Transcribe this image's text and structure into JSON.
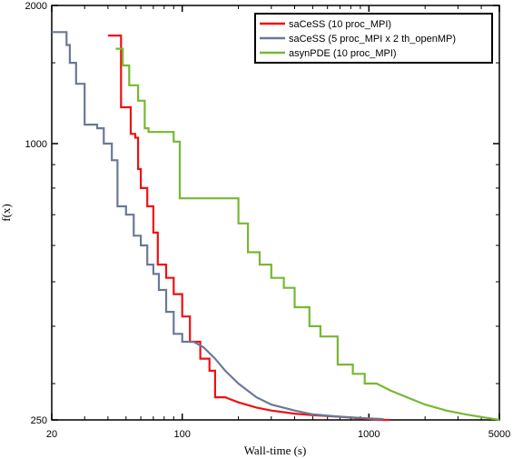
{
  "chart_data": {
    "type": "line",
    "title": "",
    "xlabel": "Wall-time (s)",
    "ylabel": "f(x)",
    "xscale": "log",
    "yscale": "log",
    "xlim": [
      20,
      5000
    ],
    "ylim": [
      250,
      2000
    ],
    "xticks": [
      20,
      100,
      1000,
      5000
    ],
    "xtick_labels": [
      "20",
      "100",
      "1000",
      "5000"
    ],
    "yticks": [
      250,
      1000,
      2000
    ],
    "ytick_labels": [
      "250",
      "1000",
      "2000"
    ],
    "grid": false,
    "legend_position": "top-right",
    "series": [
      {
        "name": "saCeSS (10 proc_MPI)",
        "color": "#ee1111",
        "points": [
          [
            40,
            1720
          ],
          [
            47,
            1720
          ],
          [
            47,
            1200
          ],
          [
            53,
            1200
          ],
          [
            53,
            1050
          ],
          [
            56,
            1050
          ],
          [
            56,
            1030
          ],
          [
            58,
            1030
          ],
          [
            58,
            880
          ],
          [
            60,
            880
          ],
          [
            60,
            800
          ],
          [
            65,
            800
          ],
          [
            65,
            730
          ],
          [
            70,
            730
          ],
          [
            70,
            640
          ],
          [
            74,
            640
          ],
          [
            74,
            545
          ],
          [
            82,
            545
          ],
          [
            82,
            510
          ],
          [
            90,
            510
          ],
          [
            90,
            470
          ],
          [
            100,
            470
          ],
          [
            100,
            420
          ],
          [
            110,
            420
          ],
          [
            110,
            370
          ],
          [
            125,
            370
          ],
          [
            125,
            340
          ],
          [
            140,
            340
          ],
          [
            140,
            320
          ],
          [
            150,
            320
          ],
          [
            150,
            280
          ],
          [
            170,
            280
          ],
          [
            200,
            273
          ],
          [
            250,
            266
          ],
          [
            300,
            262
          ],
          [
            400,
            258
          ],
          [
            500,
            256
          ],
          [
            700,
            254
          ],
          [
            900,
            252
          ],
          [
            1200,
            250
          ],
          [
            1300,
            250
          ]
        ]
      },
      {
        "name": "saCeSS (5 proc_MPI x 2 th_openMP)",
        "color": "#6b7896",
        "points": [
          [
            20,
            1750
          ],
          [
            24,
            1750
          ],
          [
            24,
            1640
          ],
          [
            25,
            1640
          ],
          [
            25,
            1500
          ],
          [
            27,
            1500
          ],
          [
            27,
            1350
          ],
          [
            30,
            1350
          ],
          [
            30,
            1100
          ],
          [
            35,
            1100
          ],
          [
            35,
            1080
          ],
          [
            38,
            1080
          ],
          [
            38,
            1000
          ],
          [
            42,
            1000
          ],
          [
            42,
            920
          ],
          [
            45,
            920
          ],
          [
            45,
            730
          ],
          [
            50,
            730
          ],
          [
            50,
            700
          ],
          [
            55,
            700
          ],
          [
            55,
            630
          ],
          [
            60,
            630
          ],
          [
            60,
            600
          ],
          [
            65,
            600
          ],
          [
            65,
            545
          ],
          [
            70,
            545
          ],
          [
            70,
            520
          ],
          [
            75,
            520
          ],
          [
            75,
            480
          ],
          [
            82,
            480
          ],
          [
            82,
            430
          ],
          [
            90,
            430
          ],
          [
            90,
            385
          ],
          [
            100,
            385
          ],
          [
            100,
            370
          ],
          [
            115,
            370
          ],
          [
            130,
            360
          ],
          [
            150,
            340
          ],
          [
            170,
            320
          ],
          [
            200,
            300
          ],
          [
            250,
            280
          ],
          [
            300,
            270
          ],
          [
            400,
            262
          ],
          [
            500,
            257
          ],
          [
            700,
            254
          ],
          [
            1000,
            252
          ],
          [
            1200,
            251
          ]
        ]
      },
      {
        "name": "asynPDE (10 proc_MPI)",
        "color": "#77b833",
        "points": [
          [
            44,
            1610
          ],
          [
            48,
            1610
          ],
          [
            48,
            1480
          ],
          [
            52,
            1480
          ],
          [
            52,
            1340
          ],
          [
            58,
            1340
          ],
          [
            58,
            1240
          ],
          [
            63,
            1240
          ],
          [
            63,
            1080
          ],
          [
            66,
            1080
          ],
          [
            66,
            1060
          ],
          [
            90,
            1060
          ],
          [
            90,
            1010
          ],
          [
            97,
            1010
          ],
          [
            97,
            760
          ],
          [
            200,
            760
          ],
          [
            200,
            670
          ],
          [
            225,
            670
          ],
          [
            225,
            580
          ],
          [
            260,
            580
          ],
          [
            260,
            545
          ],
          [
            300,
            545
          ],
          [
            300,
            510
          ],
          [
            350,
            510
          ],
          [
            350,
            485
          ],
          [
            400,
            485
          ],
          [
            400,
            440
          ],
          [
            480,
            440
          ],
          [
            480,
            400
          ],
          [
            550,
            400
          ],
          [
            550,
            380
          ],
          [
            680,
            380
          ],
          [
            680,
            330
          ],
          [
            820,
            330
          ],
          [
            820,
            315
          ],
          [
            950,
            315
          ],
          [
            950,
            300
          ],
          [
            1100,
            300
          ],
          [
            1300,
            290
          ],
          [
            1600,
            280
          ],
          [
            2000,
            270
          ],
          [
            2600,
            262
          ],
          [
            3300,
            257
          ],
          [
            4200,
            253
          ],
          [
            5000,
            250
          ]
        ]
      }
    ]
  }
}
